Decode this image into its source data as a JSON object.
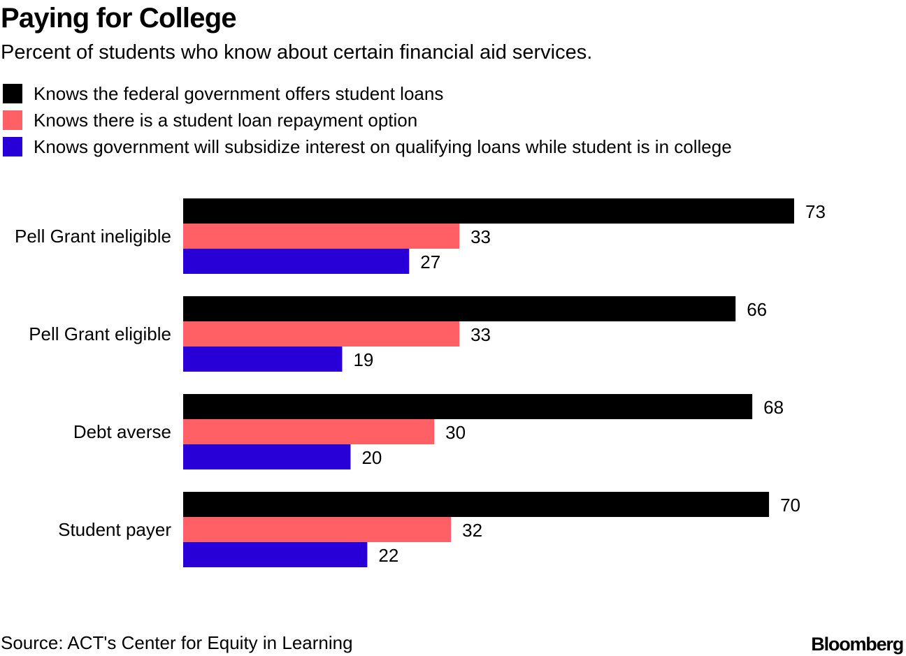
{
  "header": {
    "title": "Paying for College",
    "subtitle": "Percent of students who know about certain financial aid services."
  },
  "footer": {
    "source": "Source: ACT's Center for Equity in Learning",
    "brand": "Bloomberg"
  },
  "chart_data": {
    "type": "bar",
    "orientation": "horizontal",
    "title": "Paying for College",
    "subtitle": "Percent of students who know about certain financial aid services.",
    "xlabel": "",
    "ylabel": "",
    "xlim": [
      0,
      73
    ],
    "grid": false,
    "legend_position": "top-left",
    "categories": [
      "Pell Grant ineligible",
      "Pell Grant eligible",
      "Debt averse",
      "Student payer"
    ],
    "series": [
      {
        "name": "Knows the federal government offers student loans",
        "color": "#000000",
        "values": [
          73,
          66,
          68,
          70
        ]
      },
      {
        "name": "Knows there is a student loan repayment option",
        "color": "#ff6066",
        "values": [
          33,
          33,
          30,
          32
        ]
      },
      {
        "name": "Knows government will subsidize interest on qualifying loans while student is in college",
        "color": "#2800d7",
        "values": [
          27,
          19,
          20,
          22
        ]
      }
    ]
  }
}
